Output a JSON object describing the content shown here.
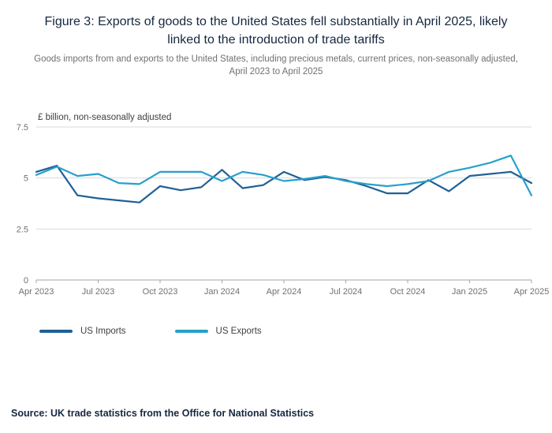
{
  "title": "Figure 3: Exports of goods to the United States fell substantially in April 2025, likely linked to the introduction of trade tariffs",
  "subtitle": "Goods imports from and exports to the United States, including precious metals, current prices, non-seasonally adjusted, April 2023 to April 2025",
  "source": "Source: UK trade statistics from the Office for National Statistics",
  "chart_data": {
    "type": "line",
    "unit_label": "£ billion, non-seasonally adjusted",
    "ylim": [
      0,
      7.5
    ],
    "y_ticks": [
      0,
      2.5,
      5,
      7.5
    ],
    "grid_on": true,
    "legend_position": "bottom",
    "grid_color": "#d9d9d9",
    "axis_color": "#a6a6a6",
    "axis_text_color": "#707071",
    "x": [
      "Apr 2023",
      "May 2023",
      "Jun 2023",
      "Jul 2023",
      "Aug 2023",
      "Sep 2023",
      "Oct 2023",
      "Nov 2023",
      "Dec 2023",
      "Jan 2024",
      "Feb 2024",
      "Mar 2024",
      "Apr 2024",
      "May 2024",
      "Jun 2024",
      "Jul 2024",
      "Aug 2024",
      "Sep 2024",
      "Oct 2024",
      "Nov 2024",
      "Dec 2024",
      "Jan 2025",
      "Feb 2025",
      "Mar 2025",
      "Apr 2025"
    ],
    "x_tick_labels": [
      "Apr 2023",
      "Jul 2023",
      "Oct 2023",
      "Jan 2024",
      "Apr 2024",
      "Jul 2024",
      "Oct 2024",
      "Jan 2025",
      "Apr 2025"
    ],
    "series": [
      {
        "name": "US Imports",
        "color": "#206095",
        "values": [
          5.3,
          5.6,
          4.15,
          4.0,
          3.9,
          3.8,
          4.6,
          4.4,
          4.55,
          5.4,
          4.5,
          4.65,
          5.3,
          4.9,
          5.05,
          4.9,
          4.6,
          4.25,
          4.25,
          4.9,
          4.35,
          5.1,
          5.2,
          5.3,
          4.75
        ]
      },
      {
        "name": "US Exports",
        "color": "#27A0CC",
        "values": [
          5.15,
          5.55,
          5.1,
          5.2,
          4.75,
          4.7,
          5.3,
          5.3,
          5.3,
          4.85,
          5.3,
          5.15,
          4.85,
          4.95,
          5.1,
          4.85,
          4.7,
          4.6,
          4.7,
          4.85,
          5.3,
          5.5,
          5.75,
          6.1,
          4.15
        ]
      }
    ]
  }
}
